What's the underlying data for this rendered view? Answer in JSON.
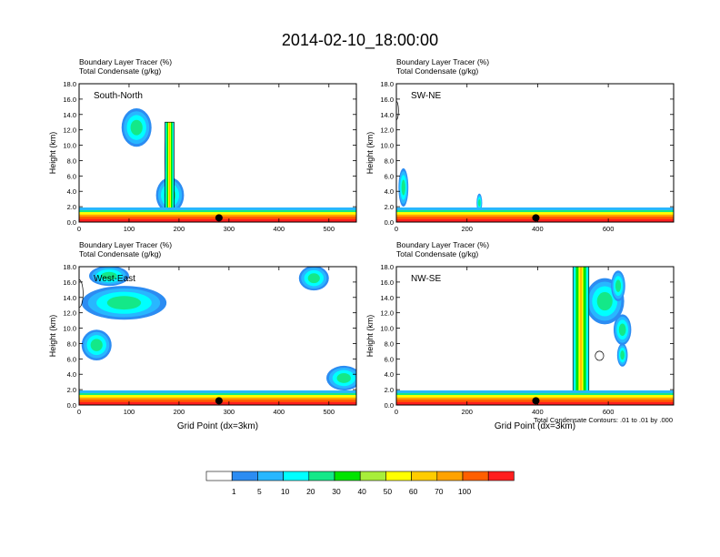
{
  "title": "2014-02-10_18:00:00",
  "chart_data": [
    {
      "type": "heatmap",
      "panel_label": "South-North",
      "subtitle_lines": [
        "Boundary Layer Tracer   (%)",
        "Total Condensate   (g/kg)"
      ],
      "ylabel": "Height (km)",
      "xlabel": "",
      "xlim": [
        0,
        555
      ],
      "ylim": [
        0,
        18
      ],
      "x_ticks": [
        0,
        100,
        200,
        300,
        400,
        500
      ],
      "y_ticks": [
        "0.0",
        "2.0",
        "4.0",
        "6.0",
        "8.0",
        "10.0",
        "12.0",
        "14.0",
        "16.0",
        "18.0"
      ],
      "marker_x": 280,
      "base_top_km": 1.3,
      "blobs": [
        {
          "x": 115,
          "y": 12.3,
          "rx": 30,
          "ry": 2.5
        },
        {
          "x": 180,
          "y": 8.5,
          "rx": 9,
          "ry": 4.5
        },
        {
          "x": 182,
          "y": 3.5,
          "rx": 28,
          "ry": 2.3
        }
      ],
      "columns": [
        {
          "x0": 172,
          "x1": 190,
          "y0": 1.5,
          "y1": 13.0
        }
      ],
      "outlines": []
    },
    {
      "type": "heatmap",
      "panel_label": "SW-NE",
      "subtitle_lines": [
        "Boundary Layer Tracer   (%)",
        "Total Condensate   (g/kg)"
      ],
      "ylabel": "Height (km)",
      "xlabel": "",
      "xlim": [
        0,
        785
      ],
      "ylim": [
        0,
        18
      ],
      "x_ticks": [
        0,
        200,
        400,
        600
      ],
      "y_ticks": [
        "0.0",
        "2.0",
        "4.0",
        "6.0",
        "8.0",
        "10.0",
        "12.0",
        "14.0",
        "16.0",
        "18.0"
      ],
      "marker_x": 395,
      "base_top_km": 1.3,
      "blobs": [
        {
          "x": 20,
          "y": 4.5,
          "rx": 14,
          "ry": 2.5
        },
        {
          "x": 235,
          "y": 2.5,
          "rx": 8,
          "ry": 1.2
        }
      ],
      "columns": [],
      "outlines": [
        {
          "x": 0,
          "y": 14.5,
          "rx": 6,
          "ry": 1.2
        }
      ]
    },
    {
      "type": "heatmap",
      "panel_label": "West-East",
      "subtitle_lines": [
        "Boundary Layer Tracer   (%)",
        "Total Condensate   (g/kg)"
      ],
      "ylabel": "Height (km)",
      "xlabel": "Grid Point (dx=3km)",
      "xlim": [
        0,
        555
      ],
      "ylim": [
        0,
        18
      ],
      "x_ticks": [
        0,
        100,
        200,
        300,
        400,
        500
      ],
      "y_ticks": [
        "0.0",
        "2.0",
        "4.0",
        "6.0",
        "8.0",
        "10.0",
        "12.0",
        "14.0",
        "16.0",
        "18.0"
      ],
      "marker_x": 280,
      "base_top_km": 1.3,
      "blobs": [
        {
          "x": 90,
          "y": 13.3,
          "rx": 85,
          "ry": 2.2
        },
        {
          "x": 60,
          "y": 16.8,
          "rx": 40,
          "ry": 1.3
        },
        {
          "x": 35,
          "y": 7.8,
          "rx": 30,
          "ry": 2.0
        },
        {
          "x": 470,
          "y": 16.5,
          "rx": 30,
          "ry": 1.6
        },
        {
          "x": 530,
          "y": 3.5,
          "rx": 35,
          "ry": 1.6
        }
      ],
      "columns": [],
      "outlines": [
        {
          "x": 0,
          "y": 14.5,
          "rx": 8,
          "ry": 1.8
        }
      ]
    },
    {
      "type": "heatmap",
      "panel_label": "NW-SE",
      "subtitle_lines": [
        "Boundary Layer Tracer   (%)",
        "Total Condensate   (g/kg)"
      ],
      "ylabel": "Height (km)",
      "xlabel": "Grid Point (dx=3km)",
      "xlim": [
        0,
        785
      ],
      "ylim": [
        0,
        18
      ],
      "x_ticks": [
        0,
        200,
        400,
        600
      ],
      "y_ticks": [
        "0.0",
        "2.0",
        "4.0",
        "6.0",
        "8.0",
        "10.0",
        "12.0",
        "14.0",
        "16.0",
        "18.0"
      ],
      "marker_x": 395,
      "base_top_km": 1.3,
      "blobs": [
        {
          "x": 590,
          "y": 13.5,
          "rx": 55,
          "ry": 3.0
        },
        {
          "x": 640,
          "y": 9.8,
          "rx": 25,
          "ry": 2.0
        },
        {
          "x": 640,
          "y": 6.5,
          "rx": 15,
          "ry": 1.5
        },
        {
          "x": 628,
          "y": 15.5,
          "rx": 20,
          "ry": 2.0
        }
      ],
      "columns": [
        {
          "x0": 500,
          "x1": 545,
          "y0": 1.0,
          "y1": 18.0
        }
      ],
      "outlines": [
        {
          "x": 575,
          "y": 6.4,
          "rx": 12,
          "ry": 0.6
        }
      ],
      "contour_note": "Total Condensate Contours: .01 to .01 by .000"
    }
  ],
  "colorbar": {
    "labels": [
      "1",
      "5",
      "10",
      "20",
      "30",
      "40",
      "50",
      "60",
      "70",
      "100"
    ],
    "colors": [
      "#ffffff",
      "#2c8cf2",
      "#28b7ff",
      "#00ffff",
      "#14e888",
      "#00e400",
      "#a8ee3a",
      "#ffff00",
      "#ffcc00",
      "#ffa200",
      "#ff5f00",
      "#ff1e1e"
    ]
  }
}
